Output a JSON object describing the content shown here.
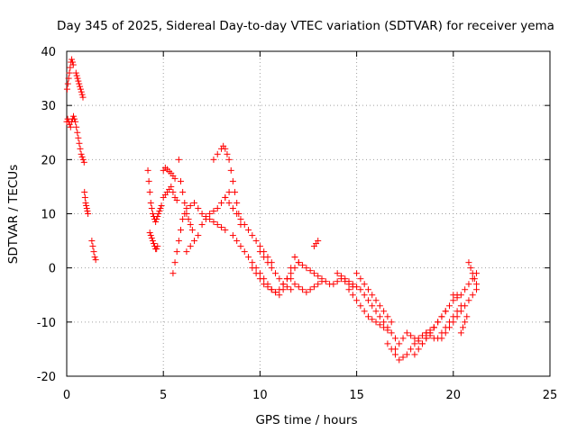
{
  "chart_data": {
    "type": "scatter",
    "title": "Day 345 of 2025, Sidereal Day-to-day VTEC variation (SDTVAR) for receiver yema",
    "xlabel": "GPS time / hours",
    "ylabel": "SDTVAR / TECUs",
    "xlim": [
      0,
      25
    ],
    "ylim": [
      -20,
      40
    ],
    "xticks": [
      "0",
      "5",
      "10",
      "15",
      "20",
      "25"
    ],
    "yticks": [
      "-20",
      "-10",
      "0",
      "10",
      "20",
      "30",
      "40"
    ],
    "grid": true,
    "marker": "+",
    "color": "#ff0000",
    "series": [
      {
        "name": "SDTVAR",
        "x": [
          0.0,
          0.05,
          0.1,
          0.15,
          0.2,
          0.25,
          0.3,
          0.35,
          0.4,
          0.45,
          0.5,
          0.55,
          0.6,
          0.65,
          0.7,
          0.75,
          0.8,
          0.85,
          0.9,
          0.02,
          0.06,
          0.1,
          0.14,
          0.18,
          0.22,
          0.26,
          0.3,
          0.34,
          0.48,
          0.52,
          0.56,
          0.6,
          0.64,
          0.68,
          0.72,
          0.76,
          0.8,
          0.84,
          0.92,
          0.95,
          0.98,
          1.01,
          1.04,
          1.07,
          1.1,
          1.3,
          1.35,
          1.4,
          1.45,
          1.5,
          4.2,
          4.25,
          4.3,
          4.35,
          4.4,
          4.45,
          4.5,
          4.55,
          4.6,
          4.65,
          4.7,
          4.75,
          4.8,
          4.85,
          4.9,
          4.3,
          4.35,
          4.4,
          4.45,
          4.5,
          4.55,
          4.6,
          4.65,
          4.7,
          5.0,
          5.1,
          5.2,
          5.3,
          5.4,
          5.5,
          5.6,
          5.0,
          5.1,
          5.2,
          5.3,
          5.4,
          5.5,
          5.6,
          5.7,
          5.5,
          5.6,
          5.7,
          5.8,
          5.9,
          6.0,
          6.1,
          6.2,
          5.8,
          5.9,
          6.0,
          6.1,
          6.2,
          6.3,
          6.4,
          6.5,
          6.2,
          6.4,
          6.6,
          6.8,
          7.0,
          7.2,
          7.4,
          7.6,
          7.8,
          8.0,
          8.2,
          8.4,
          6.4,
          6.6,
          6.8,
          7.0,
          7.2,
          7.4,
          7.6,
          7.8,
          8.0,
          8.2,
          7.6,
          7.8,
          8.0,
          8.1,
          8.2,
          8.3,
          8.4,
          8.5,
          8.6,
          8.7,
          8.8,
          8.9,
          9.0,
          8.2,
          8.4,
          8.6,
          8.8,
          9.0,
          9.2,
          9.4,
          9.6,
          9.8,
          10.0,
          10.2,
          10.4,
          10.6,
          8.6,
          8.8,
          9.0,
          9.2,
          9.4,
          9.6,
          9.8,
          10.0,
          10.2,
          10.4,
          10.6,
          10.8,
          11.0,
          11.2,
          11.4,
          11.6,
          11.8,
          12.0,
          10.0,
          10.2,
          10.4,
          10.6,
          10.8,
          11.0,
          11.2,
          11.4,
          11.6,
          9.6,
          9.8,
          10.0,
          10.2,
          10.4,
          10.6,
          10.8,
          11.0,
          11.2,
          11.4,
          11.6,
          11.8,
          11.8,
          12.0,
          12.2,
          12.4,
          12.6,
          12.8,
          13.0,
          13.2,
          13.4,
          13.6,
          13.8,
          14.0,
          14.2,
          14.4,
          14.6,
          14.8,
          11.6,
          11.8,
          12.0,
          12.2,
          12.4,
          12.6,
          12.8,
          13.0,
          13.2,
          12.8,
          12.9,
          13.0,
          14.0,
          14.2,
          14.4,
          14.6,
          14.8,
          15.0,
          15.2,
          15.4,
          15.6,
          15.8,
          16.0,
          16.2,
          16.4,
          16.6,
          14.6,
          14.8,
          15.0,
          15.2,
          15.4,
          15.6,
          15.8,
          16.0,
          16.2,
          16.4,
          16.6,
          16.8,
          17.0,
          15.0,
          15.2,
          15.4,
          15.6,
          15.8,
          16.0,
          16.2,
          16.4,
          16.6,
          16.8,
          16.6,
          16.8,
          17.0,
          17.2,
          17.4,
          17.6,
          17.8,
          18.0,
          18.2,
          18.4,
          18.6,
          18.8,
          19.0,
          17.0,
          17.2,
          17.4,
          17.6,
          17.8,
          18.0,
          18.2,
          18.4,
          18.6,
          18.8,
          19.0,
          19.2,
          19.4,
          19.6,
          18.0,
          18.2,
          18.4,
          18.6,
          18.8,
          19.0,
          19.2,
          19.4,
          19.6,
          19.8,
          20.0,
          20.2,
          18.6,
          18.8,
          19.0,
          19.2,
          19.4,
          19.6,
          19.8,
          20.0,
          20.2,
          20.4,
          19.4,
          19.6,
          19.8,
          20.0,
          20.2,
          20.4,
          20.6,
          20.8,
          21.0,
          21.2,
          20.0,
          20.2,
          20.4,
          20.6,
          20.8,
          21.0,
          21.2,
          20.4,
          20.5,
          20.6,
          20.7,
          20.8,
          20.9,
          21.0,
          21.1,
          21.2
        ],
        "y": [
          27,
          27.5,
          27,
          26.5,
          26,
          27,
          27.5,
          28,
          27.5,
          27,
          26,
          25,
          24,
          23,
          22,
          21,
          20.5,
          20,
          19.5,
          33,
          34,
          35,
          36,
          37,
          38,
          38.5,
          38,
          37.5,
          36,
          35.5,
          35,
          34.5,
          34,
          33.5,
          33,
          32.5,
          32,
          31.5,
          14,
          13,
          12,
          11.5,
          11,
          10.5,
          10,
          5,
          4,
          3,
          2,
          1.5,
          18,
          16,
          14,
          12,
          11,
          10,
          9.5,
          9,
          8.5,
          9,
          9.5,
          10,
          10.5,
          11,
          11.5,
          6.5,
          6,
          5.5,
          5,
          4.5,
          4,
          3.5,
          3.5,
          4,
          18,
          18.5,
          18.2,
          17.8,
          17.5,
          17,
          16.5,
          13,
          13.5,
          14,
          14.5,
          15,
          14,
          13,
          12.5,
          -1,
          1,
          3,
          5,
          7,
          9,
          10,
          11,
          20,
          16,
          14,
          12,
          10,
          9,
          8,
          7,
          3,
          4,
          5,
          6,
          8,
          9,
          10,
          10.5,
          11,
          12,
          13,
          14,
          11.5,
          12,
          11,
          10,
          9.5,
          9,
          8.5,
          8,
          7.5,
          7,
          20,
          21,
          22,
          22.5,
          22,
          21,
          20,
          18,
          16,
          14,
          12,
          10,
          8,
          13,
          12,
          11,
          10,
          9,
          8,
          7,
          6,
          5,
          4,
          3,
          2,
          1,
          6,
          5,
          4,
          3,
          2,
          1,
          0,
          -1,
          -2,
          -3,
          -4,
          -4.5,
          -4,
          -3,
          -2,
          -1,
          0,
          1,
          3,
          2,
          1,
          0,
          -1,
          -2,
          -3,
          -3.5,
          -4,
          0,
          -1,
          -2,
          -3,
          -3.5,
          -4,
          -4.5,
          -5,
          -4,
          -2,
          0,
          2,
          2,
          1,
          0.5,
          0,
          -0.5,
          -1,
          -1.5,
          -2,
          -2.5,
          -3,
          -3,
          -2.5,
          -2,
          -2.5,
          -3,
          -3.5,
          -2,
          -3,
          -3.5,
          -4,
          -4.5,
          -4,
          -3.5,
          -3,
          -2.5,
          4,
          4.5,
          5,
          -1,
          -1.5,
          -2,
          -2.5,
          -3,
          -3.5,
          -4,
          -5,
          -6,
          -7,
          -8,
          -9,
          -10,
          -11,
          -4,
          -5,
          -6,
          -7,
          -8,
          -9,
          -9.5,
          -10,
          -10.5,
          -11,
          -11.5,
          -12,
          -13,
          -1,
          -2,
          -3,
          -4,
          -5,
          -6,
          -7,
          -8,
          -9,
          -10,
          -14,
          -15,
          -16,
          -17,
          -16.5,
          -16,
          -15,
          -14,
          -13,
          -12.5,
          -12,
          -11.5,
          -11,
          -15,
          -14,
          -13,
          -12,
          -12.5,
          -13,
          -13.5,
          -14,
          -13,
          -12,
          -11,
          -10,
          -9,
          -8,
          -16,
          -15,
          -14,
          -13,
          -12,
          -11,
          -10,
          -9,
          -8,
          -7,
          -6,
          -5,
          -12,
          -12.5,
          -13,
          -13,
          -12,
          -11,
          -10,
          -9,
          -8,
          -7,
          -13,
          -12,
          -11,
          -10,
          -9,
          -8,
          -7,
          -6,
          -5,
          -4,
          -5,
          -5.5,
          -5,
          -4,
          -3,
          -2,
          -1,
          -12,
          -11,
          -10,
          -9,
          1,
          0,
          -1,
          -2,
          -3
        ]
      }
    ]
  }
}
